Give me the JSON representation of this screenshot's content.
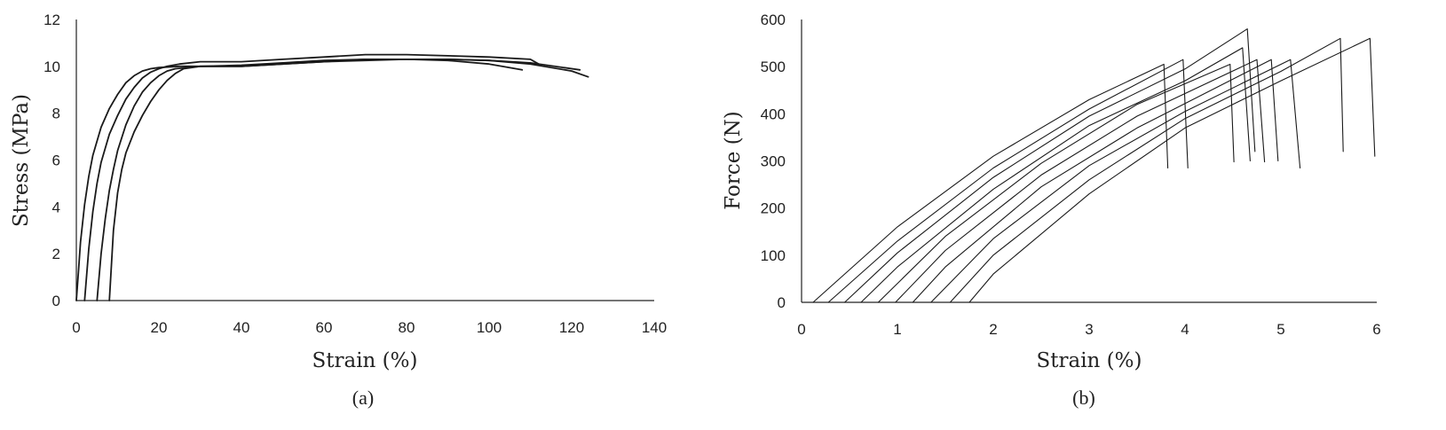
{
  "chart_data": [
    {
      "type": "line",
      "caption": "(a)",
      "xlabel": "Strain (%)",
      "ylabel": "Stress (MPa)",
      "xlim": [
        0,
        140
      ],
      "ylim": [
        0,
        12
      ],
      "xticks": [
        0,
        20,
        40,
        60,
        80,
        100,
        120,
        140
      ],
      "yticks": [
        0,
        2,
        4,
        6,
        8,
        10,
        12
      ],
      "grid": false,
      "legend": "none",
      "series": [
        {
          "x": [
            0,
            0.5,
            1,
            2,
            3,
            4,
            6,
            8,
            10,
            12,
            14,
            16,
            18,
            20,
            25,
            30,
            40,
            50,
            60,
            70,
            80,
            90,
            100,
            108
          ],
          "y": [
            0,
            1.2,
            2.5,
            4.1,
            5.3,
            6.2,
            7.4,
            8.2,
            8.8,
            9.3,
            9.6,
            9.8,
            9.9,
            9.95,
            10.0,
            10.0,
            10.05,
            10.15,
            10.25,
            10.3,
            10.3,
            10.25,
            10.1,
            9.85
          ]
        },
        {
          "x": [
            2,
            3,
            4,
            5,
            6,
            8,
            10,
            12,
            14,
            16,
            18,
            20,
            22,
            25,
            30,
            40,
            50,
            60,
            70,
            80,
            90,
            100,
            110,
            112
          ],
          "y": [
            0,
            2.2,
            3.8,
            5.0,
            5.9,
            7.1,
            7.9,
            8.6,
            9.1,
            9.5,
            9.75,
            9.9,
            10.0,
            10.1,
            10.2,
            10.2,
            10.3,
            10.4,
            10.5,
            10.5,
            10.45,
            10.4,
            10.3,
            10.1
          ]
        },
        {
          "x": [
            5,
            6,
            7,
            8,
            9,
            10,
            12,
            14,
            16,
            18,
            20,
            22,
            24,
            30,
            40,
            50,
            60,
            70,
            80,
            90,
            100,
            110,
            122
          ],
          "y": [
            0,
            2.0,
            3.5,
            4.7,
            5.6,
            6.4,
            7.5,
            8.3,
            8.9,
            9.3,
            9.6,
            9.8,
            9.9,
            10.0,
            10.0,
            10.1,
            10.2,
            10.3,
            10.3,
            10.3,
            10.25,
            10.15,
            9.85
          ]
        },
        {
          "x": [
            8,
            8.5,
            9,
            10,
            11,
            12,
            14,
            16,
            18,
            20,
            22,
            24,
            26,
            30,
            40,
            50,
            60,
            70,
            80,
            90,
            100,
            110,
            120,
            124
          ],
          "y": [
            0,
            1.5,
            3.0,
            4.6,
            5.6,
            6.3,
            7.2,
            7.9,
            8.5,
            9.0,
            9.4,
            9.7,
            9.9,
            10.0,
            10.0,
            10.1,
            10.2,
            10.25,
            10.3,
            10.3,
            10.25,
            10.1,
            9.8,
            9.55
          ]
        }
      ]
    },
    {
      "type": "line",
      "caption": "(b)",
      "xlabel": "Strain (%)",
      "ylabel": "Force (N)",
      "xlim": [
        0,
        6
      ],
      "ylim": [
        0,
        600
      ],
      "xticks": [
        0,
        1,
        2,
        3,
        4,
        5,
        6
      ],
      "yticks": [
        0,
        100,
        200,
        300,
        400,
        500,
        600
      ],
      "grid": false,
      "legend": "none",
      "series": [
        {
          "x": [
            0.12,
            1.0,
            2.0,
            3.0,
            3.78,
            3.82
          ],
          "y": [
            0,
            160,
            310,
            430,
            505,
            285
          ]
        },
        {
          "x": [
            0.28,
            1.0,
            2.0,
            3.0,
            3.98,
            4.03
          ],
          "y": [
            0,
            130,
            285,
            410,
            515,
            285
          ]
        },
        {
          "x": [
            0.45,
            1.0,
            2.0,
            3.0,
            4.0,
            4.65,
            4.73
          ],
          "y": [
            0,
            105,
            265,
            395,
            495,
            580,
            320
          ]
        },
        {
          "x": [
            0.62,
            1.0,
            2.0,
            3.0,
            4.0,
            4.6,
            4.68
          ],
          "y": [
            0,
            75,
            240,
            375,
            470,
            540,
            300
          ]
        },
        {
          "x": [
            0.8,
            1.5,
            2.5,
            3.5,
            4.47,
            4.51
          ],
          "y": [
            0,
            140,
            295,
            420,
            505,
            298
          ]
        },
        {
          "x": [
            0.98,
            1.5,
            2.5,
            3.5,
            4.75,
            4.83
          ],
          "y": [
            0,
            110,
            270,
            395,
            515,
            298
          ]
        },
        {
          "x": [
            1.16,
            1.5,
            2.5,
            3.5,
            4.9,
            4.97
          ],
          "y": [
            0,
            75,
            245,
            370,
            515,
            300
          ]
        },
        {
          "x": [
            1.35,
            2.0,
            3.0,
            4.0,
            5.1,
            5.2
          ],
          "y": [
            0,
            135,
            290,
            405,
            515,
            285
          ]
        },
        {
          "x": [
            1.55,
            2.0,
            3.0,
            4.0,
            5.0,
            5.62,
            5.65
          ],
          "y": [
            0,
            100,
            260,
            390,
            490,
            560,
            320
          ]
        },
        {
          "x": [
            1.75,
            2.0,
            3.0,
            4.0,
            5.0,
            5.93,
            5.98
          ],
          "y": [
            0,
            60,
            230,
            370,
            470,
            560,
            310
          ]
        }
      ]
    }
  ]
}
